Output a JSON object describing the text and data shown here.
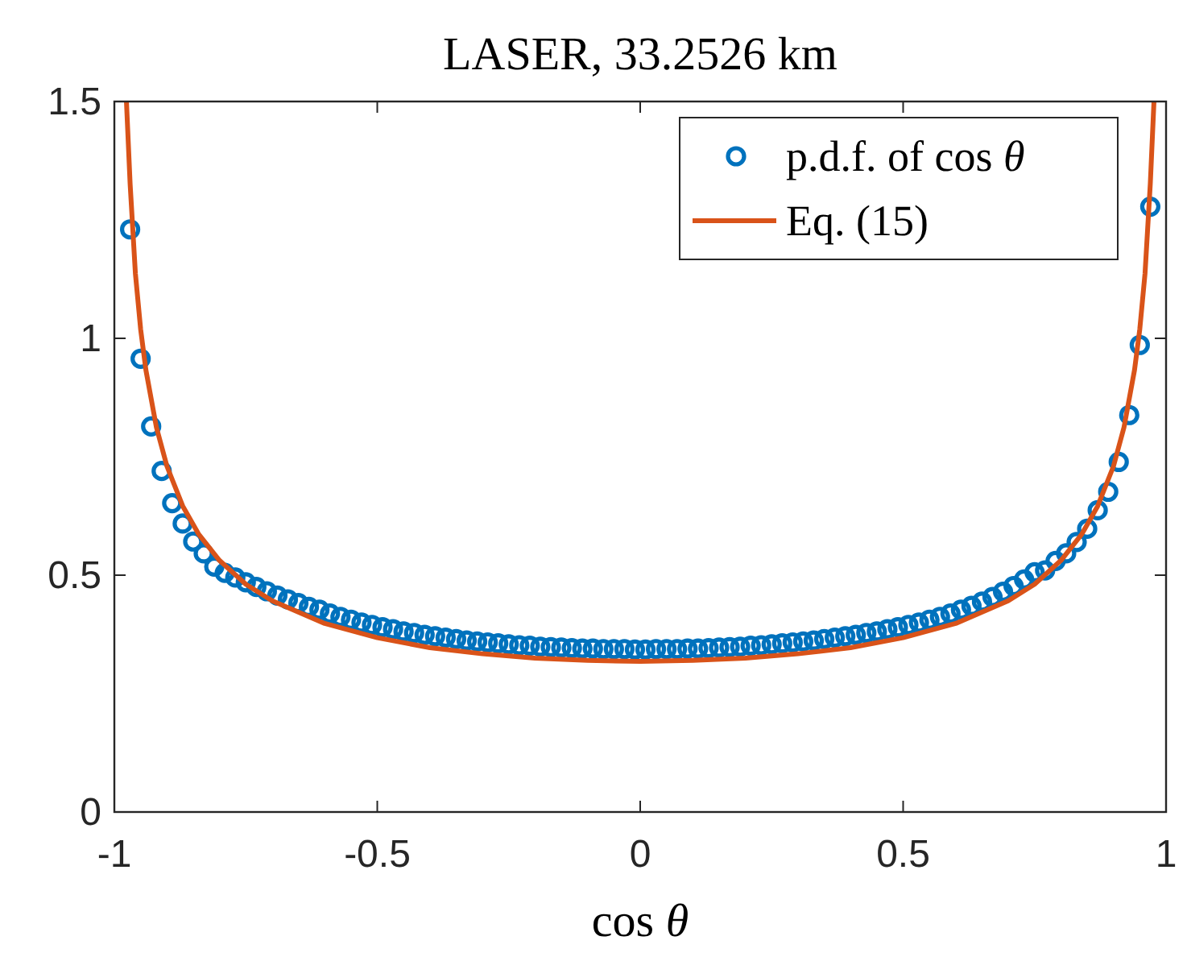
{
  "chart_data": {
    "type": "scatter",
    "title": "LASER, 33.2526 km",
    "xlabel": "cos θ",
    "xlim": [
      -1,
      1
    ],
    "ylim": [
      0,
      1.5
    ],
    "xticks": [
      -1,
      -0.5,
      0,
      0.5,
      1
    ],
    "yticks": [
      0,
      0.5,
      1,
      1.5
    ],
    "legend": "top right",
    "series": [
      {
        "name": "p.d.f. of cos θ",
        "type": "scatter",
        "marker": "circle",
        "color": "#0072bd",
        "x": [
          -0.97,
          -0.95,
          -0.93,
          -0.91,
          -0.89,
          -0.87,
          -0.85,
          -0.83,
          -0.81,
          -0.79,
          -0.77,
          -0.75,
          -0.73,
          -0.71,
          -0.69,
          -0.67,
          -0.65,
          -0.63,
          -0.61,
          -0.59,
          -0.57,
          -0.55,
          -0.53,
          -0.51,
          -0.49,
          -0.47,
          -0.45,
          -0.43,
          -0.41,
          -0.39,
          -0.37,
          -0.35,
          -0.33,
          -0.31,
          -0.29,
          -0.27,
          -0.25,
          -0.23,
          -0.21,
          -0.19,
          -0.17,
          -0.15,
          -0.13,
          -0.11,
          -0.09,
          -0.07,
          -0.05,
          -0.03,
          -0.01,
          0.01,
          0.03,
          0.05,
          0.07,
          0.09,
          0.11,
          0.13,
          0.15,
          0.17,
          0.19,
          0.21,
          0.23,
          0.25,
          0.27,
          0.29,
          0.31,
          0.33,
          0.35,
          0.37,
          0.39,
          0.41,
          0.43,
          0.45,
          0.47,
          0.49,
          0.51,
          0.53,
          0.55,
          0.57,
          0.59,
          0.61,
          0.63,
          0.65,
          0.67,
          0.69,
          0.71,
          0.73,
          0.75,
          0.77,
          0.79,
          0.81,
          0.83,
          0.85,
          0.87,
          0.89,
          0.91,
          0.93,
          0.95,
          0.97
        ],
        "values": [
          1.23,
          0.957,
          0.814,
          0.72,
          0.652,
          0.609,
          0.571,
          0.546,
          0.518,
          0.505,
          0.495,
          0.485,
          0.475,
          0.466,
          0.457,
          0.449,
          0.441,
          0.433,
          0.427,
          0.419,
          0.412,
          0.406,
          0.4,
          0.395,
          0.39,
          0.386,
          0.381,
          0.378,
          0.374,
          0.371,
          0.368,
          0.365,
          0.362,
          0.36,
          0.358,
          0.356,
          0.354,
          0.352,
          0.351,
          0.349,
          0.348,
          0.347,
          0.346,
          0.345,
          0.345,
          0.344,
          0.344,
          0.344,
          0.343,
          0.343,
          0.344,
          0.344,
          0.344,
          0.345,
          0.345,
          0.346,
          0.347,
          0.348,
          0.349,
          0.351,
          0.352,
          0.354,
          0.356,
          0.358,
          0.36,
          0.362,
          0.365,
          0.368,
          0.371,
          0.374,
          0.378,
          0.381,
          0.386,
          0.39,
          0.395,
          0.4,
          0.406,
          0.412,
          0.419,
          0.427,
          0.435,
          0.444,
          0.454,
          0.465,
          0.477,
          0.491,
          0.506,
          0.51,
          0.53,
          0.546,
          0.57,
          0.598,
          0.637,
          0.676,
          0.739,
          0.838,
          0.986,
          1.278
        ]
      },
      {
        "name": "Eq. (15)",
        "type": "line",
        "color": "#d95319",
        "x": [
          -0.977,
          -0.97,
          -0.96,
          -0.95,
          -0.94,
          -0.92,
          -0.9,
          -0.87,
          -0.84,
          -0.8,
          -0.75,
          -0.7,
          -0.6,
          -0.5,
          -0.4,
          -0.3,
          -0.2,
          -0.1,
          0,
          0.1,
          0.2,
          0.3,
          0.4,
          0.5,
          0.6,
          0.7,
          0.75,
          0.8,
          0.84,
          0.87,
          0.9,
          0.92,
          0.94,
          0.95,
          0.96,
          0.97,
          0.977
        ],
        "values": [
          1.5,
          1.326,
          1.137,
          1.019,
          0.933,
          0.812,
          0.73,
          0.646,
          0.587,
          0.531,
          0.481,
          0.446,
          0.398,
          0.368,
          0.347,
          0.334,
          0.325,
          0.32,
          0.318,
          0.32,
          0.325,
          0.334,
          0.347,
          0.368,
          0.398,
          0.446,
          0.481,
          0.531,
          0.587,
          0.646,
          0.73,
          0.812,
          0.933,
          1.019,
          1.137,
          1.326,
          1.5
        ]
      }
    ]
  }
}
